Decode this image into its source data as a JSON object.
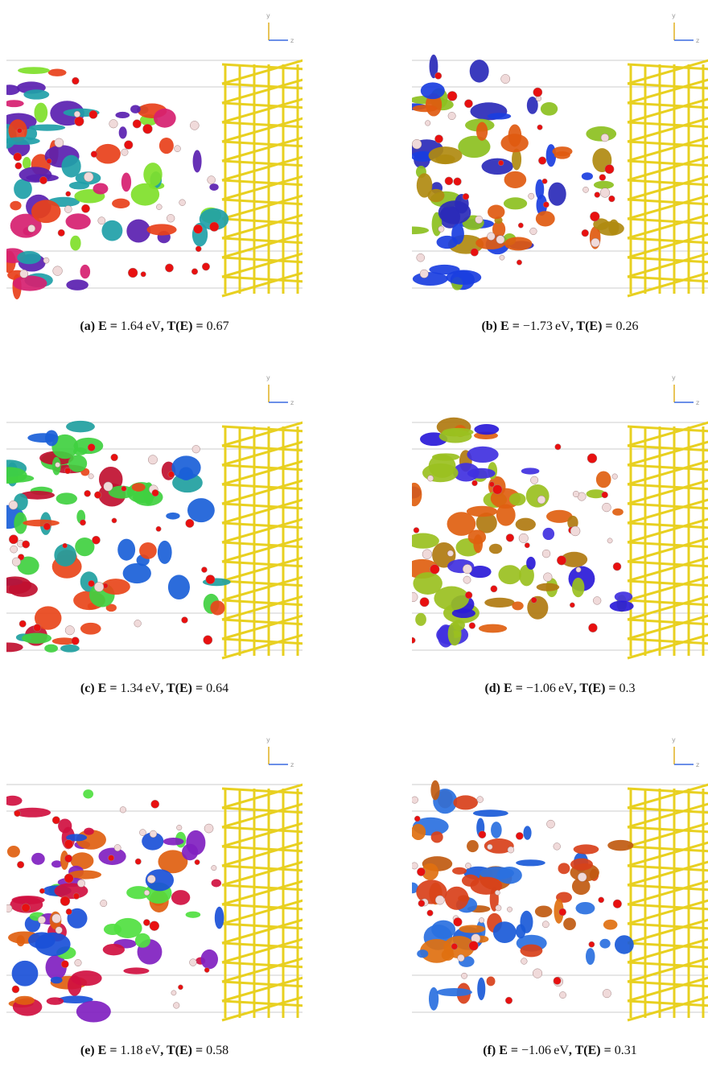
{
  "axis_labels": {
    "vertical": "y",
    "horizontal": "z"
  },
  "caption_parts": {
    "energy_label": "E =",
    "unit": "eV",
    "transmission_label": ", T(E) ="
  },
  "panels": [
    {
      "label": "(a)",
      "energy": "1.64",
      "transmission": "0.67"
    },
    {
      "label": "(b)",
      "energy": "−1.73",
      "transmission": "0.26"
    },
    {
      "label": "(c)",
      "energy": "1.34",
      "transmission": "0.64"
    },
    {
      "label": "(d)",
      "energy": "−1.06",
      "transmission": "0.3"
    },
    {
      "label": "(e)",
      "energy": "1.18",
      "transmission": "0.58"
    },
    {
      "label": "(f)",
      "energy": "−1.06",
      "transmission": "0.31"
    }
  ]
}
